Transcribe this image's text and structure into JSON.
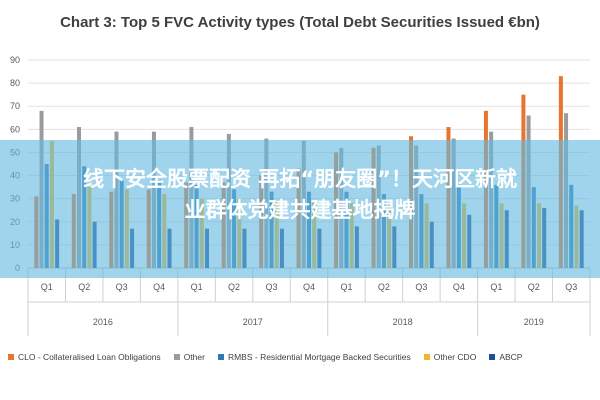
{
  "chart_data": {
    "type": "bar",
    "title": "Chart 3: Top 5 FVC Activity types (Total Debt Securities Issued €bn)",
    "categories": [
      "Q1",
      "Q2",
      "Q3",
      "Q4",
      "Q1",
      "Q2",
      "Q3",
      "Q4",
      "Q1",
      "Q2",
      "Q3",
      "Q4",
      "Q1",
      "Q2",
      "Q3"
    ],
    "years": [
      {
        "label": "2016",
        "count": 4
      },
      {
        "label": "2017",
        "count": 4
      },
      {
        "label": "2018",
        "count": 4
      },
      {
        "label": "2019",
        "count": 3
      }
    ],
    "ylim": [
      0,
      90
    ],
    "yticks": [
      0,
      10,
      20,
      30,
      40,
      50,
      60,
      70,
      80,
      90
    ],
    "grid": true,
    "legend_position": "bottom",
    "series": [
      {
        "name": "CLO - Collateralised Loan Obligations",
        "color": "#e8742e",
        "values": [
          31,
          32,
          33,
          34,
          37,
          37,
          40,
          43,
          50,
          52,
          57,
          61,
          68,
          75,
          83
        ]
      },
      {
        "name": "Other",
        "color": "#9b9b9b",
        "values": [
          68,
          61,
          59,
          59,
          61,
          58,
          56,
          55,
          52,
          53,
          53,
          56,
          59,
          66,
          67
        ]
      },
      {
        "name": "RMBS - Residential Mortgage Backed Securities",
        "color": "#2e7ab6",
        "values": [
          45,
          44,
          38,
          38,
          36,
          34,
          33,
          33,
          33,
          32,
          32,
          36,
          36,
          35,
          36
        ]
      },
      {
        "name": "Other CDO",
        "color": "#f1b928",
        "values": [
          55,
          35,
          34,
          32,
          30,
          30,
          29,
          29,
          28,
          28,
          28,
          28,
          28,
          28,
          27
        ]
      },
      {
        "name": "ABCP",
        "color": "#1f4e99",
        "values": [
          21,
          20,
          17,
          17,
          17,
          17,
          17,
          17,
          18,
          18,
          20,
          23,
          25,
          26,
          25
        ]
      }
    ]
  },
  "banner": {
    "text_line1": "线下安全股票配资 再拓“朋友圈”！天河区新就",
    "text_line2": "业群体党建共建基地揭牌",
    "color": "#64b9e1"
  }
}
